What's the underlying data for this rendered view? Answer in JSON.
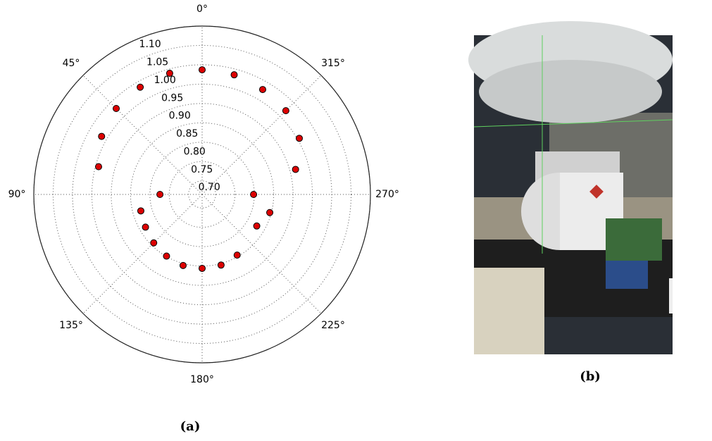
{
  "chart_data": {
    "type": "scatter",
    "polar": true,
    "direction": "counterclockwise",
    "zero": "top",
    "x": [
      0,
      345,
      330,
      315,
      300,
      285,
      15,
      30,
      45,
      60,
      75,
      90,
      270,
      105,
      120,
      135,
      150,
      165,
      180,
      195,
      210,
      240,
      255
    ],
    "values": [
      0.987,
      0.985,
      0.978,
      0.971,
      0.955,
      0.915,
      0.989,
      0.985,
      0.979,
      0.965,
      0.942,
      0.774,
      0.798,
      0.829,
      0.834,
      0.842,
      0.849,
      0.855,
      0.856,
      0.854,
      0.846,
      0.828,
      0.846
    ],
    "color": "#dd0000",
    "edgecolor": "#000000",
    "ylim": [
      0.665,
      1.1
    ],
    "yticks": [
      {
        "value": 0.7,
        "label": "0.70"
      },
      {
        "value": 0.75,
        "label": "0.75"
      },
      {
        "value": 0.8,
        "label": "0.80"
      },
      {
        "value": 0.85,
        "label": "0.85"
      },
      {
        "value": 0.9,
        "label": "0.90"
      },
      {
        "value": 0.95,
        "label": "0.95"
      },
      {
        "value": 1,
        "label": "1.00"
      },
      {
        "value": 1.05,
        "label": "1.05"
      },
      {
        "value": 1.1,
        "label": "1.10"
      }
    ],
    "xticks": [
      {
        "value": 0,
        "label": "0°"
      },
      {
        "value": 45,
        "label": "45°"
      },
      {
        "value": 90,
        "label": "90°"
      },
      {
        "value": 135,
        "label": "135°"
      },
      {
        "value": 180,
        "label": "180°"
      },
      {
        "value": 225,
        "label": "225°"
      },
      {
        "value": 270,
        "label": "270°"
      },
      {
        "value": 315,
        "label": "315°"
      }
    ],
    "grid": true
  },
  "captions": [
    "(a)",
    "(b)"
  ]
}
